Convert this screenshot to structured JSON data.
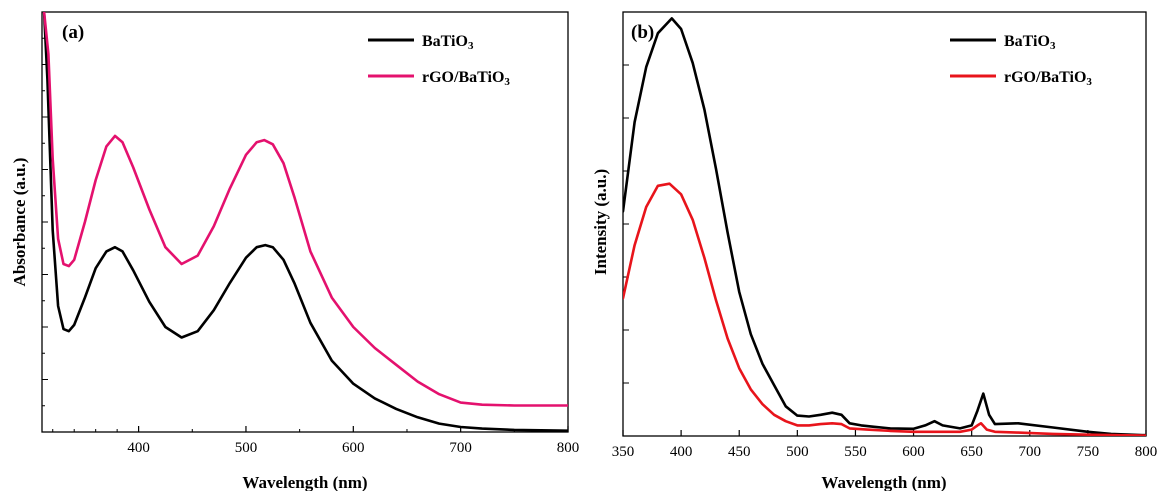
{
  "chart_data": [
    {
      "type": "line",
      "panel_label": "(a)",
      "xlabel": "Wavelength (nm)",
      "ylabel": "Absorbance (a.u.)",
      "xlim": [
        310,
        800
      ],
      "ylim": [
        0,
        1
      ],
      "xticks": [
        400,
        500,
        600,
        700,
        800
      ],
      "yticks_labeled": false,
      "legend_position": "top-right",
      "series": [
        {
          "name": "BaTiO3",
          "name_main": "BaTiO",
          "name_sub": "3",
          "color": "#000000",
          "x": [
            312,
            315,
            320,
            325,
            330,
            335,
            340,
            350,
            360,
            370,
            378,
            385,
            395,
            410,
            425,
            440,
            455,
            470,
            485,
            500,
            510,
            518,
            525,
            535,
            545,
            560,
            580,
            600,
            620,
            640,
            660,
            680,
            700,
            720,
            750,
            800
          ],
          "y": [
            1.0,
            0.84,
            0.48,
            0.3,
            0.245,
            0.24,
            0.255,
            0.32,
            0.39,
            0.43,
            0.44,
            0.43,
            0.385,
            0.31,
            0.25,
            0.225,
            0.24,
            0.29,
            0.355,
            0.415,
            0.44,
            0.445,
            0.44,
            0.41,
            0.355,
            0.26,
            0.17,
            0.115,
            0.08,
            0.055,
            0.035,
            0.02,
            0.012,
            0.008,
            0.005,
            0.003
          ]
        },
        {
          "name": "rGO/BaTiO3",
          "name_main": "rGO/BaTiO",
          "name_sub": "3",
          "color": "#e4116e",
          "x": [
            312,
            316,
            320,
            325,
            330,
            335,
            340,
            350,
            360,
            370,
            378,
            385,
            395,
            410,
            425,
            440,
            455,
            470,
            485,
            500,
            510,
            517,
            525,
            535,
            545,
            560,
            580,
            600,
            620,
            640,
            660,
            680,
            700,
            720,
            750,
            800
          ],
          "y": [
            1.0,
            0.9,
            0.65,
            0.46,
            0.4,
            0.395,
            0.41,
            0.5,
            0.6,
            0.68,
            0.705,
            0.69,
            0.63,
            0.53,
            0.44,
            0.4,
            0.42,
            0.49,
            0.58,
            0.66,
            0.69,
            0.695,
            0.685,
            0.64,
            0.56,
            0.43,
            0.32,
            0.25,
            0.2,
            0.16,
            0.12,
            0.09,
            0.07,
            0.065,
            0.063,
            0.063
          ]
        }
      ]
    },
    {
      "type": "line",
      "panel_label": "(b)",
      "xlabel": "Wavelength (nm)",
      "ylabel": "Intensity (a.u.)",
      "xlim": [
        350,
        800
      ],
      "ylim": [
        0,
        1
      ],
      "xticks": [
        350,
        400,
        450,
        500,
        550,
        600,
        650,
        700,
        750,
        800
      ],
      "yticks_labeled": false,
      "legend_position": "top-right",
      "series": [
        {
          "name": "BaTiO3",
          "name_main": "BaTiO",
          "name_sub": "3",
          "color": "#000000",
          "x": [
            350,
            360,
            370,
            380,
            392,
            400,
            410,
            420,
            430,
            440,
            450,
            460,
            470,
            480,
            490,
            500,
            510,
            520,
            530,
            538,
            545,
            555,
            565,
            580,
            600,
            610,
            618,
            625,
            640,
            650,
            655,
            660,
            665,
            670,
            690,
            720,
            750,
            770,
            800
          ],
          "y": [
            0.53,
            0.74,
            0.87,
            0.95,
            0.985,
            0.96,
            0.88,
            0.77,
            0.63,
            0.48,
            0.34,
            0.24,
            0.17,
            0.12,
            0.07,
            0.048,
            0.046,
            0.05,
            0.055,
            0.05,
            0.03,
            0.025,
            0.022,
            0.018,
            0.017,
            0.025,
            0.035,
            0.025,
            0.018,
            0.025,
            0.06,
            0.1,
            0.05,
            0.028,
            0.03,
            0.02,
            0.01,
            0.005,
            0.002
          ]
        },
        {
          "name": "rGO/BaTiO3",
          "name_main": "rGO/BaTiO",
          "name_sub": "3",
          "color": "#e8141b",
          "x": [
            350,
            360,
            370,
            380,
            390,
            400,
            410,
            420,
            430,
            440,
            450,
            460,
            470,
            480,
            490,
            500,
            510,
            520,
            530,
            538,
            545,
            560,
            580,
            600,
            620,
            640,
            650,
            655,
            658,
            663,
            670,
            690,
            720,
            750,
            800
          ],
          "y": [
            0.325,
            0.45,
            0.54,
            0.59,
            0.595,
            0.57,
            0.51,
            0.42,
            0.32,
            0.23,
            0.16,
            0.11,
            0.075,
            0.05,
            0.035,
            0.025,
            0.025,
            0.028,
            0.03,
            0.028,
            0.018,
            0.015,
            0.012,
            0.01,
            0.01,
            0.01,
            0.015,
            0.025,
            0.03,
            0.015,
            0.01,
            0.008,
            0.005,
            0.003,
            0.001
          ]
        }
      ]
    }
  ]
}
